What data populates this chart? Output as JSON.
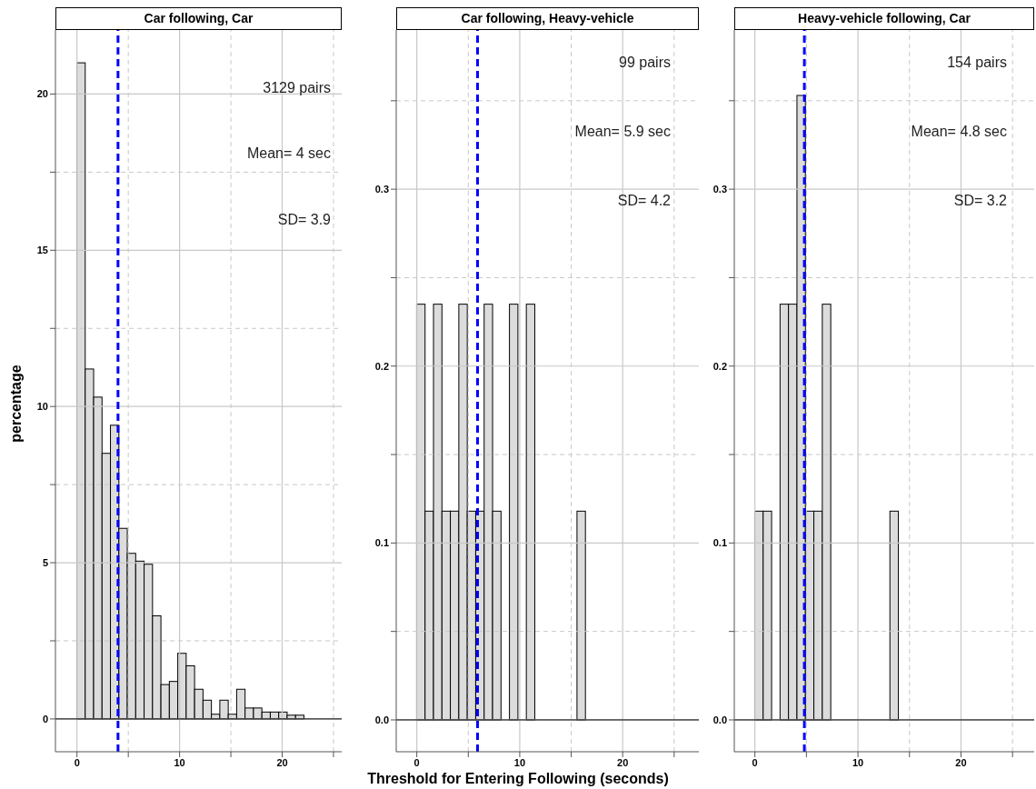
{
  "chart_data": [
    {
      "type": "histogram",
      "title": "Car following, Car",
      "ylabel": "percentage",
      "bins": [
        0,
        0.82,
        1.64,
        2.46,
        3.28,
        4.1,
        4.92,
        5.74,
        6.56,
        7.38,
        8.2,
        9.02,
        9.84,
        10.66,
        11.48,
        12.3,
        13.12,
        13.94,
        14.76,
        15.58,
        16.4,
        17.22,
        18.04,
        18.86,
        19.68,
        20.5,
        21.32,
        22.14
      ],
      "values": [
        21,
        11.2,
        10.3,
        8.5,
        9.4,
        6.1,
        5.3,
        5.05,
        4.95,
        3.3,
        1.1,
        1.2,
        2.1,
        1.7,
        0.95,
        0.6,
        0.15,
        0.6,
        0.15,
        0.95,
        0.35,
        0.35,
        0.22,
        0.22,
        0.22,
        0.12,
        0.12
      ],
      "color": "#dcdcdc",
      "xlim": [
        -2.1,
        25.8
      ],
      "xticks": [
        0,
        {
          "value": 5,
          "label": null
        },
        10,
        {
          "value": 15,
          "label": null
        },
        20,
        {
          "value": 25,
          "label": null
        }
      ],
      "ylim": [
        -1.05,
        22.05
      ],
      "yticks": [
        0,
        {
          "value": 2.5,
          "label": null
        },
        5,
        {
          "value": 7.5,
          "label": null
        },
        10,
        {
          "value": 12.5,
          "label": null
        },
        15,
        {
          "value": 17.5,
          "label": null
        },
        20
      ],
      "grid": true,
      "ref_lines": [
        {
          "axis": "x",
          "value": 4,
          "color": "#0000ff",
          "line_style": "dashed"
        },
        {
          "axis": "y",
          "value": 0,
          "color": "#000000",
          "line_style": "solid"
        }
      ],
      "annotations": [
        "3129 pairs",
        "Mean= 4 sec",
        "SD= 3.9"
      ]
    },
    {
      "type": "histogram",
      "title": "Car following, Heavy-vehicle",
      "xlabel": "Threshold for Entering Following (seconds)",
      "bins": [
        0,
        0.82,
        1.64,
        2.46,
        3.28,
        4.1,
        4.92,
        5.74,
        6.56,
        7.38,
        8.2,
        9.02,
        9.84,
        10.66,
        11.48,
        12.3,
        13.12,
        13.94,
        14.76,
        15.58,
        16.4
      ],
      "values": [
        0.235,
        0.118,
        0.235,
        0.118,
        0.118,
        0.235,
        0.118,
        0.118,
        0.235,
        0.118,
        0,
        0.235,
        0,
        0.235,
        0,
        0,
        0,
        0,
        0,
        0.118
      ],
      "color": "#dcdcdc",
      "xlim": [
        -2.0,
        27.4
      ],
      "xticks": [
        0,
        {
          "value": 5,
          "label": null
        },
        10,
        {
          "value": 15,
          "label": null
        },
        20,
        {
          "value": 25,
          "label": null
        }
      ],
      "ylim": [
        -0.018,
        0.39
      ],
      "yticks": [
        {
          "value": 0,
          "label": "0.0"
        },
        {
          "value": 0.05,
          "label": null
        },
        0.1,
        {
          "value": 0.15,
          "label": null
        },
        0.2,
        {
          "value": 0.25,
          "label": null
        },
        0.3,
        {
          "value": 0.35,
          "label": null
        }
      ],
      "grid": true,
      "ref_lines": [
        {
          "axis": "x",
          "value": 5.9,
          "color": "#0000ff",
          "line_style": "dashed"
        },
        {
          "axis": "y",
          "value": 0,
          "color": "#000000",
          "line_style": "solid"
        }
      ],
      "annotations": [
        "99 pairs",
        "Mean= 5.9 sec",
        "SD= 4.2"
      ]
    },
    {
      "type": "histogram",
      "title": "Heavy-vehicle following, Car",
      "bins": [
        0,
        0.82,
        1.64,
        2.46,
        3.28,
        4.1,
        4.92,
        5.74,
        6.56,
        7.38,
        8.2,
        9.02,
        9.84,
        10.66,
        11.48,
        12.3,
        13.12,
        13.94
      ],
      "values": [
        0.118,
        0.118,
        0,
        0.235,
        0.235,
        0.353,
        0.118,
        0.118,
        0.235,
        0,
        0,
        0,
        0,
        0,
        0,
        0,
        0.118
      ],
      "color": "#dcdcdc",
      "xlim": [
        -2.0,
        27.1
      ],
      "xticks": [
        0,
        {
          "value": 5,
          "label": null
        },
        10,
        {
          "value": 15,
          "label": null
        },
        20,
        {
          "value": 25,
          "label": null
        }
      ],
      "ylim": [
        -0.018,
        0.39
      ],
      "yticks": [
        {
          "value": 0,
          "label": "0.0"
        },
        {
          "value": 0.05,
          "label": null
        },
        0.1,
        {
          "value": 0.15,
          "label": null
        },
        0.2,
        {
          "value": 0.25,
          "label": null
        },
        0.3,
        {
          "value": 0.35,
          "label": null
        }
      ],
      "grid": true,
      "ref_lines": [
        {
          "axis": "x",
          "value": 4.8,
          "color": "#0000ff",
          "line_style": "dashed"
        },
        {
          "axis": "y",
          "value": 0,
          "color": "#000000",
          "line_style": "solid"
        }
      ],
      "annotations": [
        "154 pairs",
        "Mean= 4.8 sec",
        "SD= 3.2"
      ]
    }
  ]
}
